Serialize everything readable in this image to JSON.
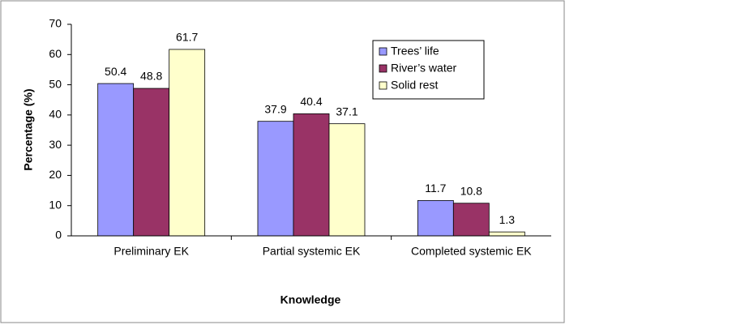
{
  "chart_data": {
    "type": "bar",
    "y_label": "Percentage (%)",
    "x_label": "Knowledge",
    "categories": [
      "Preliminary EK",
      "Partial systemic EK",
      "Completed systemic EK"
    ],
    "series": [
      {
        "name": "Trees’ life",
        "color": "#9999ff",
        "values": [
          50.4,
          37.9,
          11.7
        ]
      },
      {
        "name": "River’s water",
        "color": "#993366",
        "values": [
          48.8,
          40.4,
          10.8
        ]
      },
      {
        "name": "Solid rest",
        "color": "#ffffcc",
        "values": [
          61.7,
          37.1,
          1.3
        ]
      }
    ],
    "ylim": [
      0,
      70
    ],
    "yticks": [
      0,
      10,
      20,
      30,
      40,
      50,
      60,
      70
    ],
    "grid": false,
    "legend": "upper right"
  }
}
